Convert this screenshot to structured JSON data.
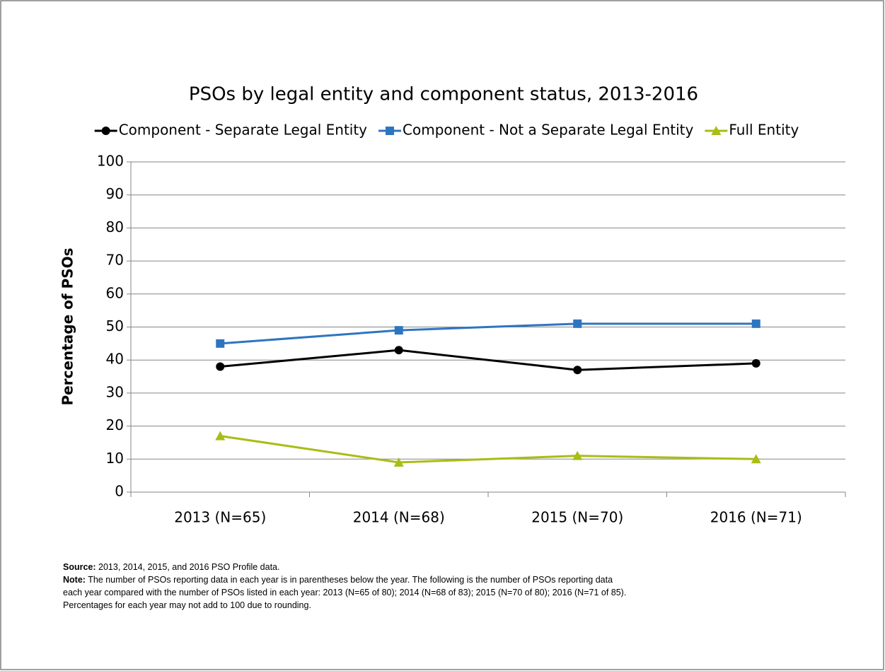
{
  "chart_data": {
    "type": "line",
    "title": "PSOs by legal entity and component status, 2013-2016",
    "y_label": "Percentage of PSOs",
    "categories": [
      "2013 (N=65)",
      "2014 (N=68)",
      "2015 (N=70)",
      "2016 (N=71)"
    ],
    "series": [
      {
        "name": "Component - Separate Legal Entity",
        "color": "#000000",
        "marker": "circle",
        "values": [
          38,
          43,
          37,
          39
        ]
      },
      {
        "name": "Component - Not a Separate Legal Entity",
        "color": "#2e75c0",
        "marker": "square",
        "values": [
          45,
          49,
          51,
          51
        ]
      },
      {
        "name": "Full Entity",
        "color": "#a9bd15",
        "marker": "triangle",
        "values": [
          17,
          9,
          11,
          10
        ]
      }
    ],
    "ylim": [
      0,
      100
    ],
    "yticks": [
      0,
      10,
      20,
      30,
      40,
      50,
      60,
      70,
      80,
      90,
      100
    ],
    "grid": true,
    "legend": "top"
  },
  "source": {
    "label": "Source:",
    "text": "2013, 2014, 2015, and 2016 PSO Profile data."
  },
  "note": {
    "label": "Note:",
    "lines": [
      "The number of PSOs reporting data in each year is in parentheses below the year. The following is the number of PSOs reporting data",
      "each year compared with the number of PSOs listed in each year: 2013 (N=65 of 80); 2014 (N=68 of 83); 2015 (N=70 of 80); 2016 (N=71 of 85).",
      "Percentages for each year may not add to 100 due to rounding."
    ]
  }
}
